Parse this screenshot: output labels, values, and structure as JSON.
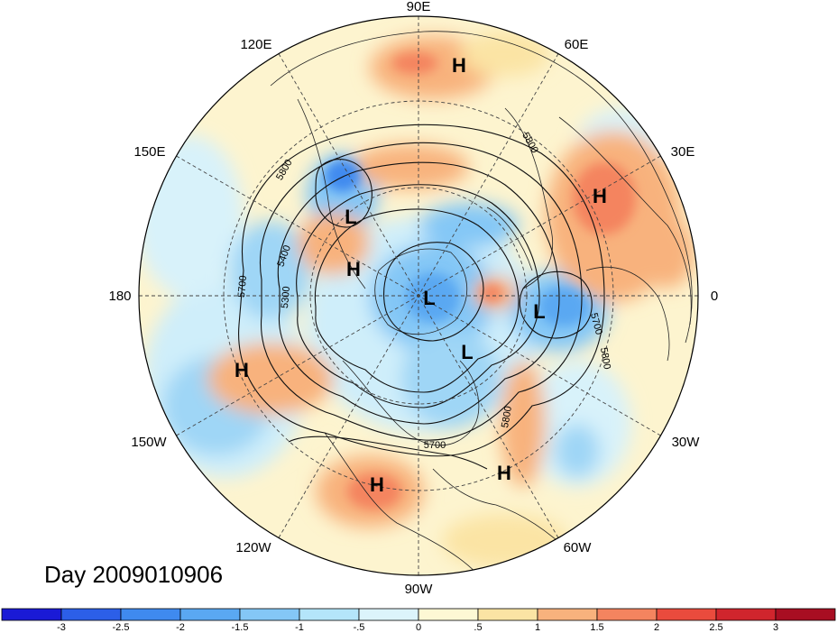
{
  "title": "Day 2009010906",
  "colors": {
    "background": "#ffffff",
    "ocean_neutral": "#fdf4cf",
    "grid": "#444444",
    "contour": "#111111"
  },
  "longitude_labels": [
    "90E",
    "60E",
    "30E",
    "0",
    "30W",
    "60W",
    "90W",
    "120W",
    "150W",
    "180",
    "150E",
    "120E"
  ],
  "pressure_centers": [
    {
      "type": "H",
      "label": "H"
    },
    {
      "type": "H",
      "label": "H"
    },
    {
      "type": "L",
      "label": "L"
    },
    {
      "type": "H",
      "label": "H"
    },
    {
      "type": "L",
      "label": "L"
    },
    {
      "type": "L",
      "label": "L"
    },
    {
      "type": "L",
      "label": "L"
    },
    {
      "type": "H",
      "label": "H"
    },
    {
      "type": "H",
      "label": "H"
    },
    {
      "type": "H",
      "label": "H"
    }
  ],
  "contour_labels": [
    "5800",
    "5800",
    "5400",
    "5700",
    "5300",
    "5800",
    "5700",
    "5800",
    "5700",
    "5800"
  ],
  "colorbar": {
    "colors": [
      "#1a1ad6",
      "#2c5fe8",
      "#3f8aef",
      "#5aa8f2",
      "#84c7f6",
      "#b4e5fa",
      "#dcf4fb",
      "#fdf8d4",
      "#fbe4a4",
      "#f8b27d",
      "#f4845f",
      "#ea4b3d",
      "#d0252d",
      "#a80e22"
    ],
    "ticks": [
      "-3",
      "-2.5",
      "-2",
      "-1.5",
      "-1",
      "-.5",
      "0",
      ".5",
      "1",
      "1.5",
      "2",
      "2.5",
      "3"
    ]
  }
}
